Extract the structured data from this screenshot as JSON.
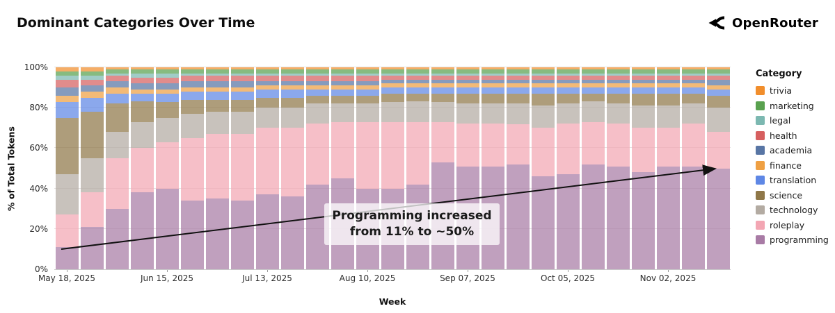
{
  "header": {
    "title": "Dominant Categories Over Time",
    "brand": "OpenRouter"
  },
  "chart_data": {
    "type": "bar",
    "stacked": true,
    "normalized": "percent",
    "title": "Dominant Categories Over Time",
    "xlabel": "Week",
    "ylabel": "% of Total Tokens",
    "legend_title": "Category",
    "legend_position": "right",
    "grid": true,
    "ylim": [
      0,
      100
    ],
    "y_ticks": [
      0,
      20,
      40,
      60,
      80,
      100
    ],
    "x": [
      "May 18, 2025",
      "May 25, 2025",
      "Jun 01, 2025",
      "Jun 08, 2025",
      "Jun 15, 2025",
      "Jun 22, 2025",
      "Jun 29, 2025",
      "Jul 06, 2025",
      "Jul 13, 2025",
      "Jul 20, 2025",
      "Jul 27, 2025",
      "Aug 03, 2025",
      "Aug 10, 2025",
      "Aug 17, 2025",
      "Aug 24, 2025",
      "Aug 31, 2025",
      "Sep 07, 2025",
      "Sep 14, 2025",
      "Sep 21, 2025",
      "Sep 28, 2025",
      "Oct 05, 2025",
      "Oct 12, 2025",
      "Oct 19, 2025",
      "Oct 26, 2025",
      "Nov 02, 2025",
      "Nov 09, 2025",
      "Nov 16, 2025"
    ],
    "x_tick_indices": [
      0,
      4,
      8,
      12,
      16,
      20,
      24
    ],
    "series": [
      {
        "name": "programming",
        "color": "#a87ba5",
        "values": [
          11,
          21,
          30,
          38,
          40,
          34,
          35,
          34,
          37,
          36,
          42,
          45,
          40,
          40,
          42,
          53,
          51,
          51,
          52,
          46,
          47,
          52,
          51,
          48,
          51,
          51,
          50
        ]
      },
      {
        "name": "roleplay",
        "color": "#f3a6b3",
        "values": [
          16,
          17,
          25,
          22,
          23,
          31,
          32,
          33,
          33,
          34,
          30,
          28,
          33,
          33,
          31,
          20,
          21,
          21,
          20,
          24,
          25,
          21,
          21,
          22,
          19,
          21,
          18
        ]
      },
      {
        "name": "technology",
        "color": "#b3aba2",
        "values": [
          20,
          17,
          13,
          13,
          12,
          12,
          11,
          11,
          10,
          10,
          10,
          9,
          9,
          10,
          10,
          10,
          10,
          10,
          10,
          11,
          10,
          10,
          10,
          11,
          11,
          10,
          12
        ]
      },
      {
        "name": "science",
        "color": "#8f7748",
        "values": [
          28,
          23,
          14,
          10,
          8,
          7,
          6,
          6,
          5,
          5,
          4,
          4,
          4,
          4,
          4,
          4,
          5,
          5,
          5,
          6,
          5,
          4,
          5,
          6,
          6,
          5,
          6
        ]
      },
      {
        "name": "translation",
        "color": "#5e87e5",
        "values": [
          8,
          7,
          5,
          4,
          4,
          4,
          4,
          4,
          4,
          4,
          3,
          3,
          3,
          3,
          3,
          3,
          3,
          3,
          3,
          3,
          3,
          3,
          3,
          3,
          3,
          3,
          3
        ]
      },
      {
        "name": "finance",
        "color": "#efa043",
        "values": [
          3,
          3,
          3,
          2,
          2,
          2,
          2,
          2,
          2,
          2,
          2,
          2,
          2,
          2,
          2,
          2,
          2,
          2,
          2,
          2,
          2,
          2,
          2,
          2,
          2,
          2,
          2
        ]
      },
      {
        "name": "academia",
        "color": "#5875a4",
        "values": [
          4,
          3,
          3,
          3,
          3,
          3,
          3,
          3,
          2,
          2,
          2,
          2,
          2,
          2,
          2,
          2,
          2,
          2,
          2,
          2,
          2,
          2,
          2,
          2,
          2,
          2,
          3
        ]
      },
      {
        "name": "health",
        "color": "#d65f5f",
        "values": [
          4,
          3,
          3,
          3,
          3,
          3,
          3,
          3,
          3,
          3,
          3,
          3,
          3,
          2,
          2,
          2,
          2,
          2,
          2,
          2,
          2,
          2,
          2,
          2,
          2,
          2,
          2
        ]
      },
      {
        "name": "legal",
        "color": "#7cb8b1",
        "values": [
          2,
          2,
          1,
          2,
          2,
          1,
          1,
          1,
          1,
          1,
          1,
          1,
          1,
          1,
          1,
          1,
          1,
          1,
          1,
          1,
          1,
          1,
          1,
          1,
          1,
          1,
          1
        ]
      },
      {
        "name": "marketing",
        "color": "#59a14f",
        "values": [
          2,
          2,
          2,
          2,
          2,
          2,
          2,
          2,
          2,
          2,
          2,
          2,
          2,
          2,
          2,
          2,
          2,
          2,
          2,
          2,
          2,
          2,
          2,
          2,
          2,
          2,
          2
        ]
      },
      {
        "name": "trivia",
        "color": "#f18e2c",
        "values": [
          2,
          2,
          1,
          1,
          1,
          1,
          1,
          1,
          1,
          1,
          1,
          1,
          1,
          1,
          1,
          1,
          1,
          1,
          1,
          1,
          1,
          1,
          1,
          1,
          1,
          1,
          1
        ]
      }
    ],
    "annotation": {
      "text": "Programming increased from 11% to ~50%"
    }
  }
}
